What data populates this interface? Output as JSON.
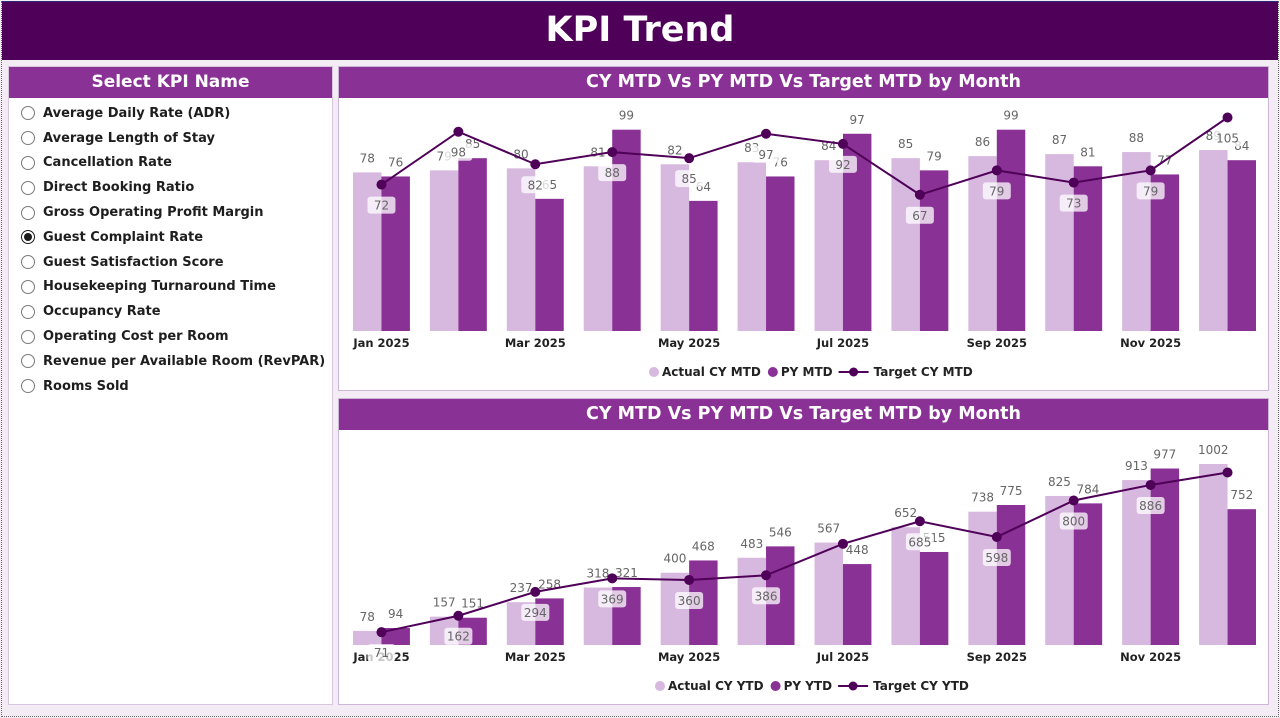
{
  "header": {
    "title": "KPI Trend"
  },
  "colors": {
    "header_bg": "#4f0058",
    "panel_title_bg": "#8a3196",
    "actual": "#d7b8de",
    "py": "#8a3196",
    "target": "#4f0058"
  },
  "slicer": {
    "title": "Select KPI Name",
    "selected": "Guest Complaint Rate",
    "items": [
      {
        "label": "Average Daily Rate (ADR)",
        "selected": false
      },
      {
        "label": "Average Length of Stay",
        "selected": false
      },
      {
        "label": "Cancellation Rate",
        "selected": false
      },
      {
        "label": "Direct Booking Ratio",
        "selected": false
      },
      {
        "label": "Gross Operating Profit Margin",
        "selected": false
      },
      {
        "label": "Guest Complaint Rate",
        "selected": true
      },
      {
        "label": "Guest Satisfaction Score",
        "selected": false
      },
      {
        "label": "Housekeeping Turnaround Time",
        "selected": false
      },
      {
        "label": "Occupancy Rate",
        "selected": false
      },
      {
        "label": "Operating Cost per Room",
        "selected": false
      },
      {
        "label": "Revenue per Available Room (RevPAR)",
        "selected": false
      },
      {
        "label": "Rooms Sold",
        "selected": false
      }
    ]
  },
  "chart_data": [
    {
      "type": "bar",
      "title": "CY MTD Vs PY MTD Vs Target MTD by Month",
      "xlabel": "",
      "ylabel": "",
      "ylim": [
        0,
        105
      ],
      "grid": false,
      "legend_position": "bottom-center",
      "categories": [
        "Jan 2025",
        "Feb 2025",
        "Mar 2025",
        "Apr 2025",
        "May 2025",
        "Jun 2025",
        "Jul 2025",
        "Aug 2025",
        "Sep 2025",
        "Oct 2025",
        "Nov 2025",
        "Dec 2025"
      ],
      "tick_labels": [
        "Jan 2025",
        "",
        "Mar 2025",
        "",
        "May 2025",
        "",
        "Jul 2025",
        "",
        "Sep 2025",
        "",
        "Nov 2025",
        ""
      ],
      "series": [
        {
          "name": "Actual CY MTD",
          "kind": "bar",
          "values": [
            78,
            79,
            80,
            81,
            82,
            83,
            84,
            85,
            86,
            87,
            88,
            89
          ],
          "labels_shown": [
            true,
            true,
            true,
            true,
            true,
            true,
            true,
            true,
            true,
            true,
            true,
            true
          ]
        },
        {
          "name": "PY MTD",
          "kind": "bar",
          "values": [
            76,
            85,
            65,
            99,
            64,
            76,
            97,
            79,
            99,
            81,
            77,
            84
          ],
          "labels_shown": [
            true,
            true,
            true,
            true,
            true,
            true,
            true,
            true,
            true,
            true,
            true,
            true
          ]
        },
        {
          "name": "Target CY MTD",
          "kind": "line",
          "values": [
            72,
            98,
            82,
            88,
            85,
            97,
            92,
            67,
            79,
            73,
            79,
            105
          ],
          "labels_shown": [
            true,
            true,
            true,
            true,
            true,
            true,
            true,
            true,
            true,
            true,
            true,
            true
          ]
        }
      ]
    },
    {
      "type": "bar",
      "title": "CY MTD Vs PY MTD Vs Target MTD by Month",
      "xlabel": "",
      "ylabel": "",
      "ylim": [
        0,
        1002
      ],
      "grid": false,
      "legend_position": "bottom-center",
      "categories": [
        "Jan 2025",
        "Feb 2025",
        "Mar 2025",
        "Apr 2025",
        "May 2025",
        "Jun 2025",
        "Jul 2025",
        "Aug 2025",
        "Sep 2025",
        "Oct 2025",
        "Nov 2025",
        "Dec 2025"
      ],
      "tick_labels": [
        "Jan 2025",
        "",
        "Mar 2025",
        "",
        "May 2025",
        "",
        "Jul 2025",
        "",
        "Sep 2025",
        "",
        "Nov 2025",
        ""
      ],
      "series": [
        {
          "name": "Actual CY YTD",
          "kind": "bar",
          "values": [
            78,
            157,
            237,
            318,
            400,
            483,
            567,
            652,
            738,
            825,
            913,
            1002
          ],
          "labels_shown": [
            true,
            true,
            true,
            true,
            true,
            true,
            true,
            true,
            true,
            true,
            true,
            true
          ]
        },
        {
          "name": "PY YTD",
          "kind": "bar",
          "values": [
            94,
            151,
            258,
            321,
            468,
            546,
            448,
            515,
            775,
            784,
            977,
            752
          ],
          "labels_shown": [
            true,
            true,
            true,
            true,
            true,
            true,
            true,
            true,
            true,
            true,
            true,
            true
          ]
        },
        {
          "name": "Target CY YTD",
          "kind": "line",
          "values": [
            71,
            162,
            294,
            369,
            360,
            386,
            560,
            685,
            598,
            800,
            886,
            955
          ],
          "labels_shown": [
            true,
            true,
            true,
            true,
            true,
            true,
            false,
            true,
            true,
            true,
            true,
            false
          ]
        }
      ]
    }
  ]
}
